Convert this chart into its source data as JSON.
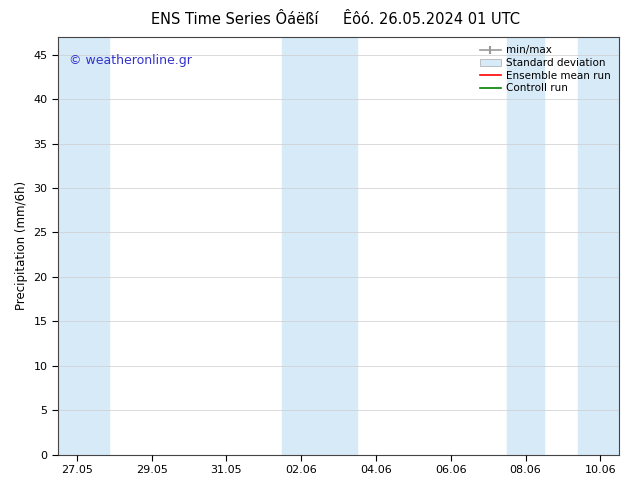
{
  "title_left": "ENS Time Series Ôáëßí",
  "title_right": "Êôó. 26.05.2024 01 UTC",
  "ylabel": "Precipitation (mm/6h)",
  "ylim": [
    0,
    47
  ],
  "yticks": [
    0,
    5,
    10,
    15,
    20,
    25,
    30,
    35,
    40,
    45
  ],
  "xtick_labels": [
    "27.05",
    "29.05",
    "31.05",
    "02.06",
    "04.06",
    "06.06",
    "08.06",
    "10.06"
  ],
  "band_color": "#d6eaf8",
  "background_color": "#ffffff",
  "watermark_text": "© weatheronline.gr",
  "watermark_color": "#3333cc",
  "legend_line_color": "#999999",
  "legend_std_color": "#d6eaf8",
  "legend_mean_color": "#ff0000",
  "legend_ctrl_color": "#008000",
  "title_fontsize": 10.5,
  "axis_fontsize": 8.5,
  "tick_fontsize": 8,
  "watermark_fontsize": 9
}
